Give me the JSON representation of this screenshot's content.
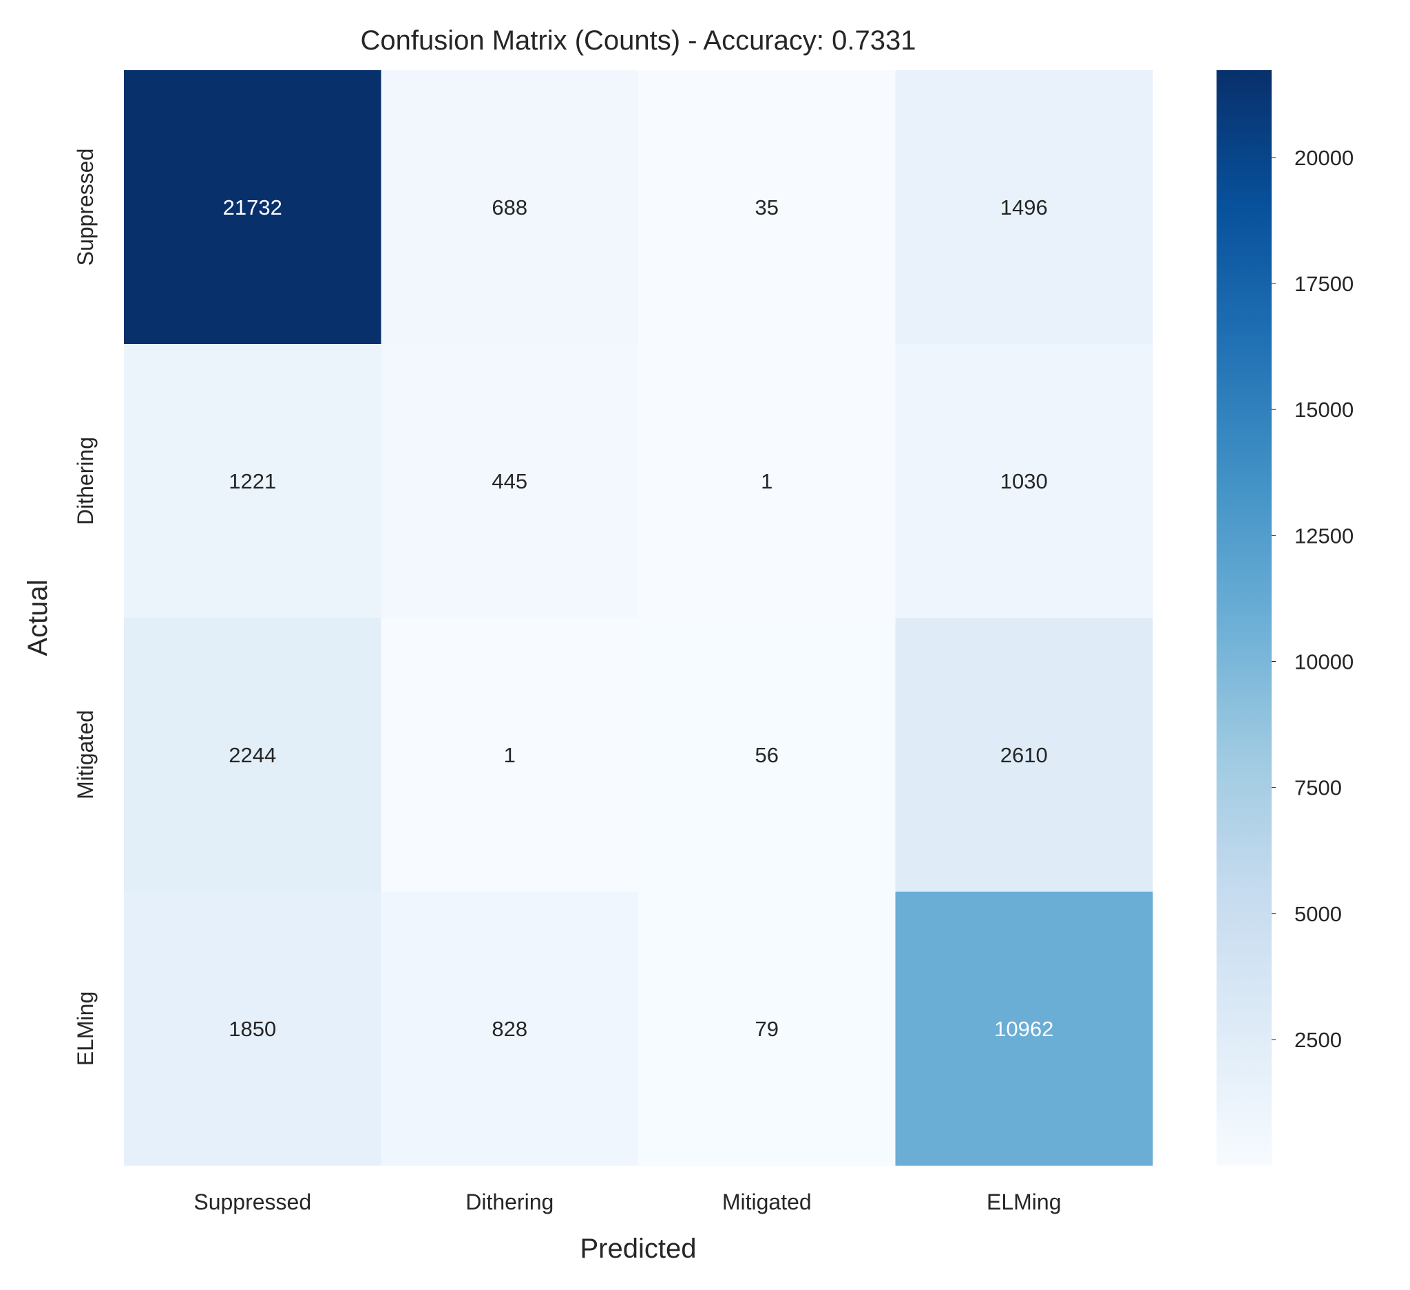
{
  "chart_data": {
    "type": "heatmap",
    "title": "Confusion Matrix (Counts) - Accuracy: 0.7331",
    "xlabel": "Predicted",
    "ylabel": "Actual",
    "x_categories": [
      "Suppressed",
      "Dithering",
      "Mitigated",
      "ELMing"
    ],
    "y_categories": [
      "Suppressed",
      "Dithering",
      "Mitigated",
      "ELMing"
    ],
    "values": [
      [
        21732,
        688,
        35,
        1496
      ],
      [
        1221,
        445,
        1,
        1030
      ],
      [
        2244,
        1,
        56,
        2610
      ],
      [
        1850,
        828,
        79,
        10962
      ]
    ],
    "colormap": "Blues",
    "colorbar": {
      "range": [
        1,
        21732
      ],
      "ticks": [
        2500,
        5000,
        7500,
        10000,
        12500,
        15000,
        17500,
        20000
      ],
      "tick_labels": [
        "2500",
        "5000",
        "7500",
        "10000",
        "12500",
        "15000",
        "17500",
        "20000"
      ]
    }
  }
}
